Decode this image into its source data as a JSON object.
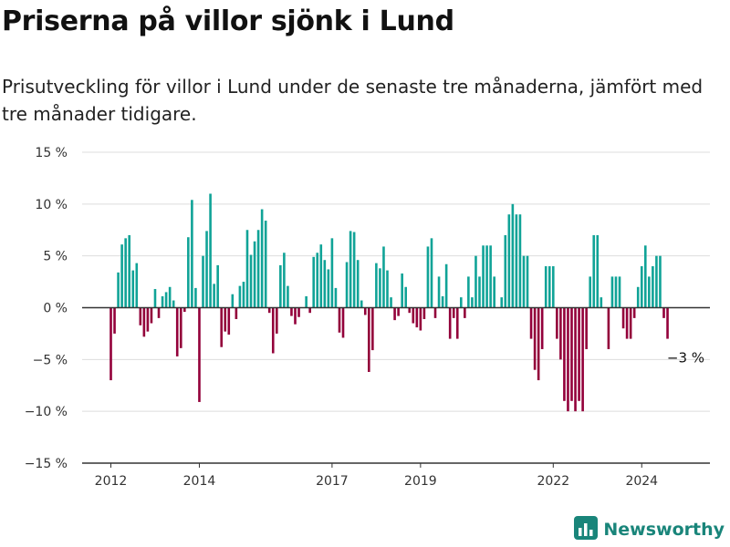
{
  "title": "Priserna på villor sjönk i Lund",
  "subtitle": "Prisutveckling för villor i Lund under de senaste tre månaderna, jämfört med tre månader tidigare.",
  "brand": {
    "name": "Newsworthy",
    "icon": "bar-chart-logo-icon"
  },
  "colors": {
    "positive": "#10a397",
    "negative": "#93003a",
    "axis": "#333333",
    "grid": "#dddddd",
    "brand": "#19857a"
  },
  "chart_data": {
    "type": "bar",
    "ylim": [
      -15,
      15
    ],
    "y_ticks": [
      15,
      10,
      5,
      0,
      -5,
      -10,
      -15
    ],
    "y_tick_labels": [
      "15 %",
      "10 %",
      "5 %",
      "0 %",
      "−5 %",
      "−10 %",
      "−15 %"
    ],
    "x_ticks": [
      "2012",
      "2014",
      "2017",
      "2019",
      "2022",
      "2024"
    ],
    "grid": "horizontal",
    "start": "2012-01",
    "frequency": "monthly",
    "values": [
      -7,
      -2.5,
      3.4,
      6.1,
      6.7,
      7.0,
      3.6,
      4.3,
      -1.7,
      -2.8,
      -2.3,
      -1.5,
      1.8,
      -1.0,
      1.1,
      1.5,
      2.0,
      0.7,
      -4.7,
      -3.9,
      -0.4,
      6.8,
      10.4,
      1.9,
      -9.1,
      5.0,
      7.4,
      11.0,
      2.3,
      4.1,
      -3.8,
      -2.3,
      -2.6,
      1.3,
      -1.1,
      2.1,
      2.5,
      7.5,
      5.1,
      6.4,
      7.5,
      9.5,
      8.4,
      -0.5,
      -4.4,
      -2.5,
      4.1,
      5.3,
      2.1,
      -0.8,
      -1.6,
      -0.9,
      0.0,
      1.1,
      -0.5,
      4.9,
      5.3,
      6.1,
      4.6,
      3.7,
      6.7,
      1.9,
      -2.4,
      -2.9,
      4.4,
      7.4,
      7.3,
      4.6,
      0.7,
      -0.7,
      -6.2,
      -4.1,
      4.3,
      3.8,
      5.9,
      3.6,
      1.0,
      -1.2,
      -0.8,
      3.3,
      2.0,
      -0.5,
      -1.5,
      -1.9,
      -2.2,
      -1.1,
      5.9,
      6.7,
      -1.0,
      3.0,
      1.1,
      4.2,
      -3.0,
      -1.0,
      -3.0,
      1.0,
      -1.0,
      3.0,
      1.0,
      5.0,
      3.0,
      6.0,
      6.0,
      6.0,
      3.0,
      0.0,
      1.0,
      7.0,
      9.0,
      10.0,
      9.0,
      9.0,
      5.0,
      5.0,
      -3.0,
      -6.0,
      -7.0,
      -4.0,
      4.0,
      4.0,
      4.0,
      -3.0,
      -5.0,
      -9.0,
      -10.0,
      -9.0,
      -10.0,
      -9.0,
      -10.0,
      -4.0,
      3.0,
      7.0,
      7.0,
      1.0,
      0.0,
      -4.0,
      3.0,
      3.0,
      3.0,
      -2.0,
      -3.0,
      -3.0,
      -1.0,
      2.0,
      4.0,
      6.0,
      3.0,
      4.0,
      5.0,
      5.0,
      -1.0,
      -3.0
    ],
    "annotation": {
      "text": "−3 %"
    }
  }
}
